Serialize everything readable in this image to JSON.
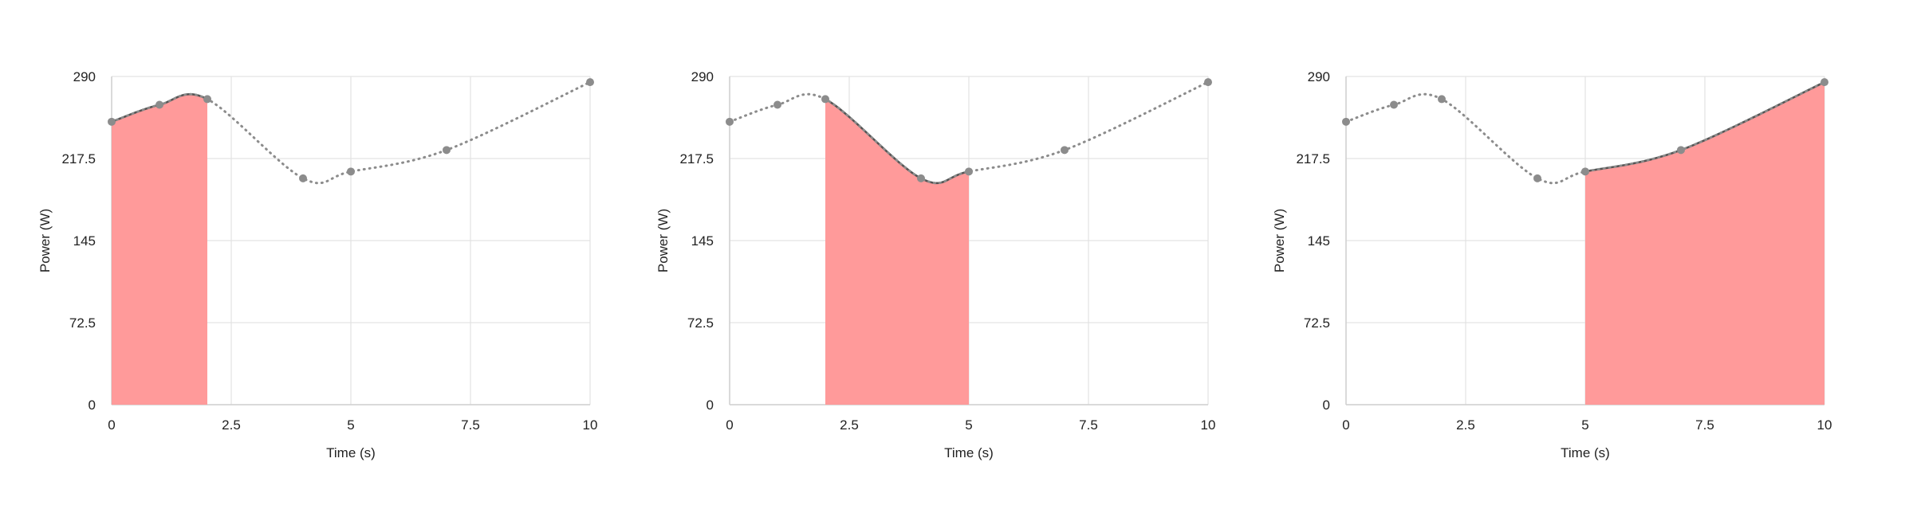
{
  "chart_data": [
    {
      "type": "line",
      "xlabel": "Time (s)",
      "ylabel": "Power (W)",
      "xlim": [
        0,
        10
      ],
      "ylim": [
        0,
        290
      ],
      "xticks": [
        0,
        2.5,
        5,
        7.5,
        10
      ],
      "xtick_labels": [
        "0",
        "2.5",
        "5",
        "7.5",
        "10"
      ],
      "yticks": [
        0,
        72.5,
        145,
        217.5,
        290
      ],
      "ytick_labels": [
        "0",
        "72.5",
        "145",
        "217.5",
        "290"
      ],
      "grid": true,
      "series": [
        {
          "x": [
            0,
            1,
            2,
            4,
            5,
            7,
            10
          ],
          "values": [
            250,
            265,
            270,
            200,
            206,
            225,
            285
          ]
        }
      ],
      "highlight": {
        "x_start": 0,
        "x_end": 2
      },
      "colors": {
        "fill": "#ff9a9a",
        "line": "#555555",
        "dots": "#8c8c8c",
        "dotted": "#8c8c8c",
        "grid": "#e3e3e3",
        "axis": "#cfcfcf"
      }
    },
    {
      "type": "line",
      "xlabel": "Time (s)",
      "ylabel": "Power (W)",
      "xlim": [
        0,
        10
      ],
      "ylim": [
        0,
        290
      ],
      "xticks": [
        0,
        2.5,
        5,
        7.5,
        10
      ],
      "xtick_labels": [
        "0",
        "2.5",
        "5",
        "7.5",
        "10"
      ],
      "yticks": [
        0,
        72.5,
        145,
        217.5,
        290
      ],
      "ytick_labels": [
        "0",
        "72.5",
        "145",
        "217.5",
        "290"
      ],
      "grid": true,
      "series": [
        {
          "x": [
            0,
            1,
            2,
            4,
            5,
            7,
            10
          ],
          "values": [
            250,
            265,
            270,
            200,
            206,
            225,
            285
          ]
        }
      ],
      "highlight": {
        "x_start": 2,
        "x_end": 5
      },
      "colors": {
        "fill": "#ff9a9a",
        "line": "#555555",
        "dots": "#8c8c8c",
        "dotted": "#8c8c8c",
        "grid": "#e3e3e3",
        "axis": "#cfcfcf"
      }
    },
    {
      "type": "line",
      "xlabel": "Time (s)",
      "ylabel": "Power (W)",
      "xlim": [
        0,
        10
      ],
      "ylim": [
        0,
        290
      ],
      "xticks": [
        0,
        2.5,
        5,
        7.5,
        10
      ],
      "xtick_labels": [
        "0",
        "2.5",
        "5",
        "7.5",
        "10"
      ],
      "yticks": [
        0,
        72.5,
        145,
        217.5,
        290
      ],
      "ytick_labels": [
        "0",
        "72.5",
        "145",
        "217.5",
        "290"
      ],
      "grid": true,
      "series": [
        {
          "x": [
            0,
            1,
            2,
            4,
            5,
            7,
            10
          ],
          "values": [
            250,
            265,
            270,
            200,
            206,
            225,
            285
          ]
        }
      ],
      "highlight": {
        "x_start": 5,
        "x_end": 10
      },
      "colors": {
        "fill": "#ff9a9a",
        "line": "#555555",
        "dots": "#8c8c8c",
        "dotted": "#8c8c8c",
        "grid": "#e3e3e3",
        "axis": "#cfcfcf"
      }
    }
  ]
}
